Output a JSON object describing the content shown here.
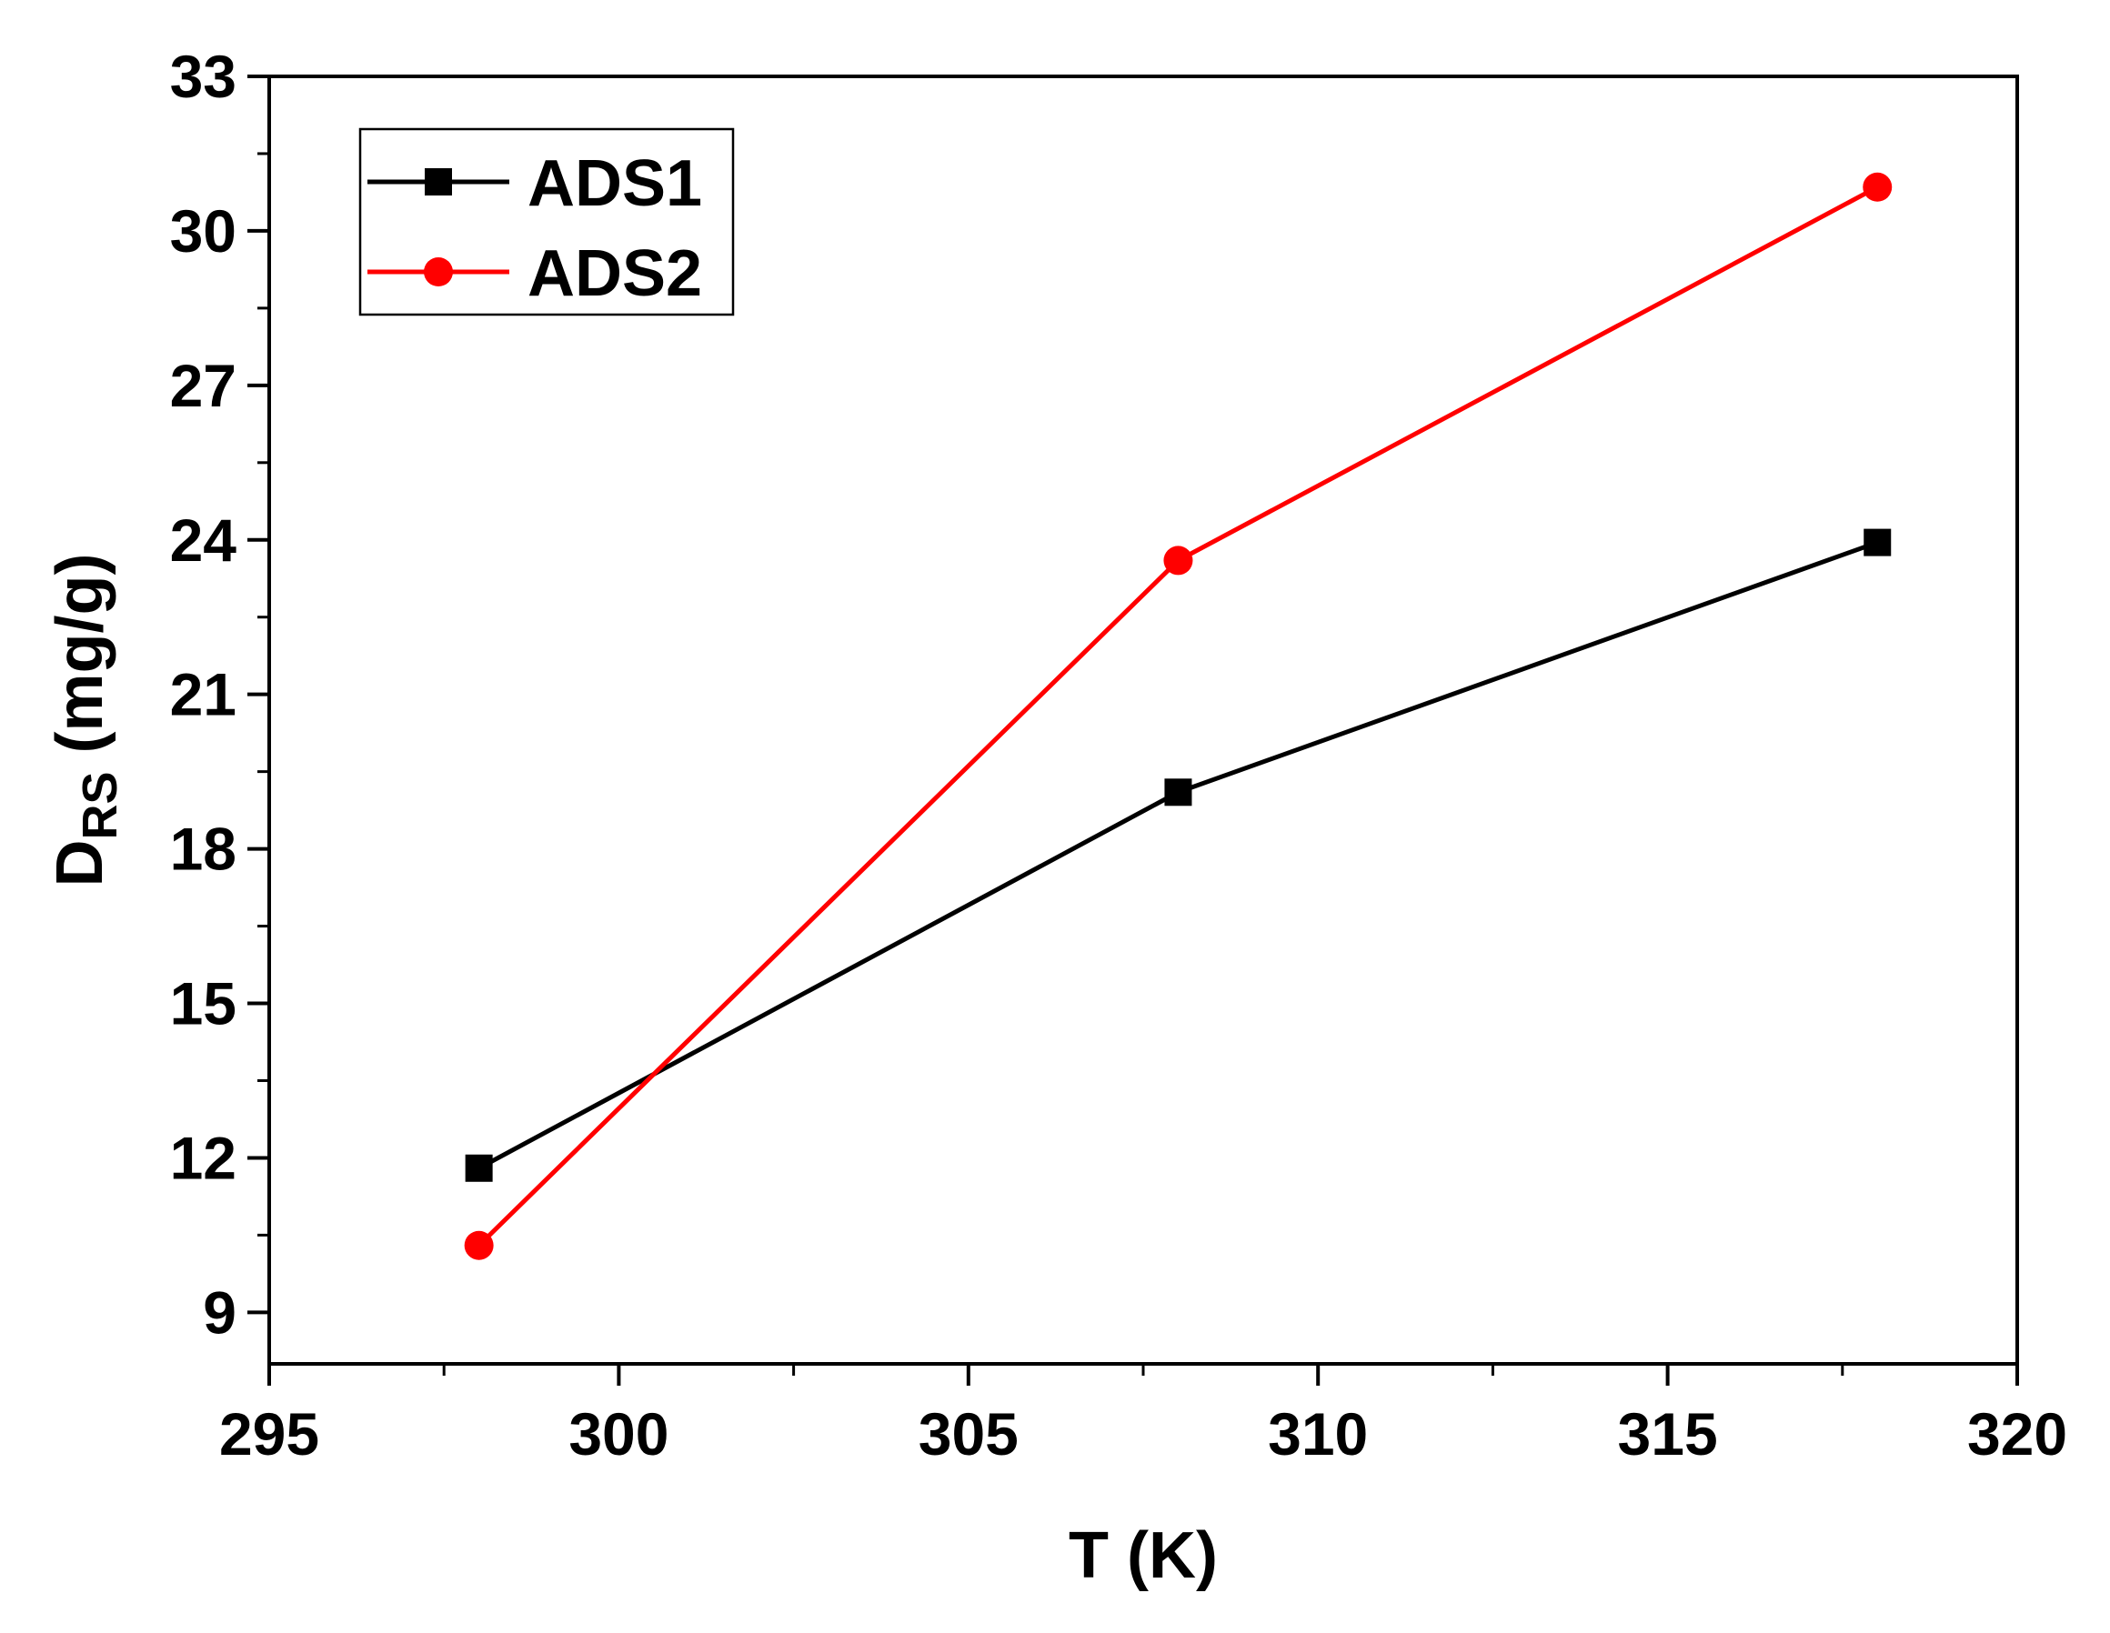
{
  "chart_data": {
    "type": "line",
    "xlabel": "T (K)",
    "ylabel_main": "D",
    "ylabel_sub": "RS",
    "ylabel_unit": " (mg/g)",
    "xlim": [
      295,
      320
    ],
    "ylim": [
      8,
      33
    ],
    "xticks": [
      295,
      300,
      305,
      310,
      315,
      320
    ],
    "yticks": [
      9,
      12,
      15,
      18,
      21,
      24,
      27,
      30,
      33
    ],
    "x_minor_tick_step": 2.5,
    "y_minor_tick_step": 1.5,
    "grid": false,
    "legend_position": "top-left",
    "series": [
      {
        "name": "ADS1",
        "color": "#000000",
        "marker": "square",
        "x": [
          298,
          308,
          318
        ],
        "y": [
          11.8,
          19.1,
          23.95
        ]
      },
      {
        "name": "ADS2",
        "color": "#ff0000",
        "marker": "circle",
        "x": [
          298,
          308,
          318
        ],
        "y": [
          10.3,
          23.6,
          30.85
        ]
      }
    ]
  }
}
